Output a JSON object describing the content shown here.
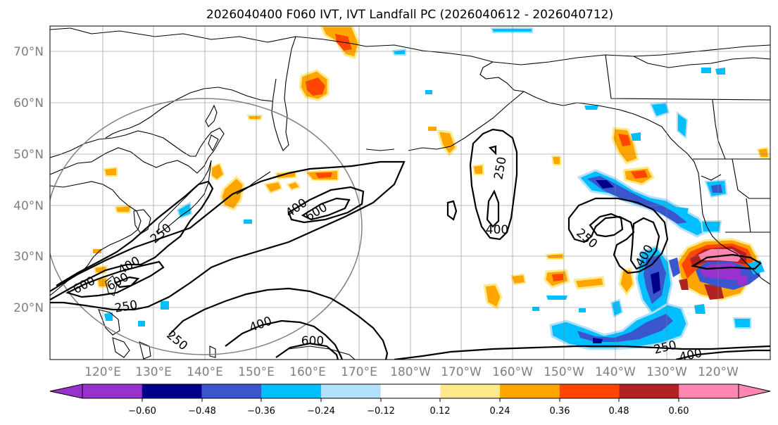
{
  "title": "2026040400 F060 IVT, IVT Landfall PC (2026040612 - 2026040712)",
  "latitude_labels": [
    "70°N",
    "60°N",
    "50°N",
    "40°N",
    "30°N",
    "20°N"
  ],
  "longitude_labels": [
    "120°E",
    "130°E",
    "140°E",
    "150°E",
    "160°E",
    "170°E",
    "180°W",
    "170°W",
    "160°W",
    "150°W",
    "140°W",
    "130°W",
    "120°W"
  ],
  "contour_labels": [
    "600",
    "400",
    "250",
    "600",
    "400",
    "250",
    "400",
    "250",
    "400",
    "600",
    "250",
    "400",
    "250",
    "400",
    "600",
    "250"
  ],
  "colorbar": {
    "tick_labels": [
      "−0.60",
      "−0.48",
      "−0.36",
      "−0.24",
      "−0.12",
      "0.12",
      "0.24",
      "0.36",
      "0.48",
      "0.60"
    ],
    "colors": [
      "#9932cc",
      "#00008b",
      "#3a56cf",
      "#00bfff",
      "#b0e0fb",
      "#ffffff",
      "#ffe98a",
      "#ffa500",
      "#ff4500",
      "#b22222",
      "#ff86b2"
    ],
    "under_color": "#9932cc",
    "over_color": "#ff86b2"
  }
}
